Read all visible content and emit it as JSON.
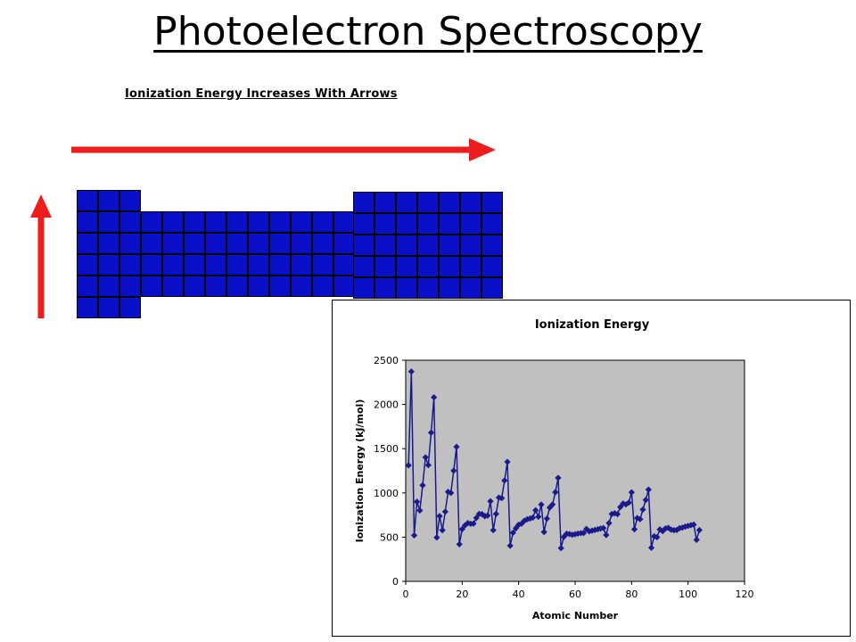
{
  "slide": {
    "title": "Photoelectron Spectroscopy"
  },
  "trend_figure": {
    "caption": "Ionization Energy Increases With Arrows",
    "arrow_color": "#ee1c1c",
    "block_color": "#0a10c8"
  },
  "chart_data": {
    "type": "line",
    "title": "Ionization Energy",
    "xlabel": "Atomic Number",
    "ylabel": "Ionization Energy (kJ/mol)",
    "xlim": [
      0,
      120
    ],
    "ylim": [
      0,
      2500
    ],
    "xticks": [
      0,
      20,
      40,
      60,
      80,
      100,
      120
    ],
    "yticks": [
      0,
      500,
      1000,
      1500,
      2000,
      2500
    ],
    "plot_background": "#c0c0c0",
    "series_color": "#1a1a8c",
    "marker": "diamond",
    "x": [
      1,
      2,
      3,
      4,
      5,
      6,
      7,
      8,
      9,
      10,
      11,
      12,
      13,
      14,
      15,
      16,
      17,
      18,
      19,
      20,
      21,
      22,
      23,
      24,
      25,
      26,
      27,
      28,
      29,
      30,
      31,
      32,
      33,
      34,
      35,
      36,
      37,
      38,
      39,
      40,
      41,
      42,
      43,
      44,
      45,
      46,
      47,
      48,
      49,
      50,
      51,
      52,
      53,
      54,
      55,
      56,
      57,
      58,
      59,
      60,
      61,
      62,
      63,
      64,
      65,
      66,
      67,
      68,
      69,
      70,
      71,
      72,
      73,
      74,
      75,
      76,
      77,
      78,
      79,
      80,
      81,
      82,
      83,
      84,
      85,
      86,
      87,
      88,
      89,
      90,
      91,
      92,
      93,
      94,
      95,
      96,
      97,
      98,
      99,
      100,
      101,
      102,
      103,
      104
    ],
    "y": [
      1312,
      2372,
      520,
      900,
      801,
      1086,
      1402,
      1314,
      1681,
      2081,
      496,
      738,
      578,
      787,
      1012,
      1000,
      1251,
      1521,
      419,
      590,
      633,
      659,
      651,
      653,
      717,
      762,
      760,
      737,
      745,
      906,
      579,
      762,
      947,
      941,
      1140,
      1351,
      403,
      550,
      600,
      640,
      652,
      684,
      702,
      710,
      720,
      804,
      731,
      868,
      558,
      709,
      834,
      869,
      1008,
      1170,
      376,
      503,
      538,
      534,
      527,
      533,
      540,
      545,
      547,
      593,
      566,
      573,
      581,
      589,
      597,
      603,
      524,
      659,
      761,
      770,
      760,
      840,
      880,
      870,
      890,
      1007,
      589,
      716,
      703,
      812,
      920,
      1037,
      380,
      509,
      499,
      587,
      568,
      598,
      605,
      585,
      578,
      581,
      601,
      608,
      619,
      627,
      635,
      642,
      470,
      580
    ]
  }
}
